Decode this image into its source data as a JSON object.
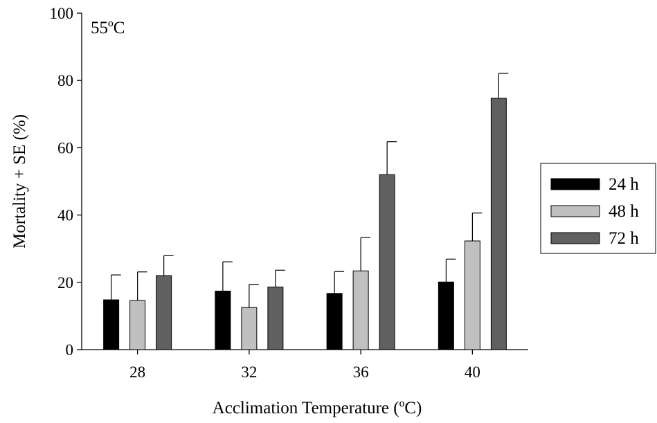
{
  "chart_data": {
    "type": "bar",
    "annotation": "55ºC",
    "xlabel": "Acclimation Temperature (ºC)",
    "ylabel": "Mortality + SE (%)",
    "categories": [
      "28",
      "32",
      "36",
      "40"
    ],
    "ylim": [
      0,
      100
    ],
    "yticks": [
      "0",
      "20",
      "40",
      "60",
      "80",
      "100"
    ],
    "legend_position": "right",
    "series": [
      {
        "name": "24 h",
        "color": "#000000",
        "values": [
          14.8,
          17.4,
          16.7,
          20.1
        ],
        "errors": [
          7.4,
          8.7,
          6.5,
          6.8
        ]
      },
      {
        "name": "48 h",
        "color": "#c0c0c0",
        "values": [
          14.6,
          12.5,
          23.4,
          32.3
        ],
        "errors": [
          8.5,
          6.9,
          9.9,
          8.3
        ]
      },
      {
        "name": "72 h",
        "color": "#606060",
        "values": [
          22.0,
          18.6,
          52.0,
          74.7
        ],
        "errors": [
          5.9,
          5.0,
          9.8,
          7.4
        ]
      }
    ]
  }
}
